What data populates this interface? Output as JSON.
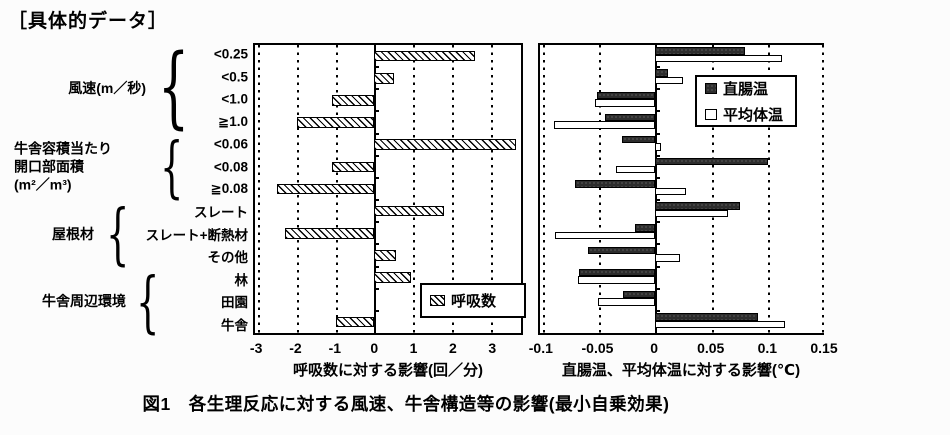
{
  "header": {
    "title": "［具体的データ］"
  },
  "caption": "図1　各生理反応に対する風速、牛舎構造等の影響(最小自乗効果)",
  "colors": {
    "bar_dark": "#2d2d2d",
    "bar_light": "#ffffff",
    "hatch_line": "#000000",
    "background": "#ffffff"
  },
  "categories": [
    "<0.25",
    "<0.5",
    "<1.0",
    "≧1.0",
    "<0.06",
    "<0.08",
    "≧0.08",
    "スレート",
    "スレート+断熱材",
    "その他",
    "林",
    "田園",
    "牛舎"
  ],
  "groups": [
    {
      "label_lines": [
        "風速(m／秒)"
      ],
      "start_row": 0,
      "end_row": 3
    },
    {
      "label_lines": [
        "牛舎容積当たり",
        "開口部面積",
        "(m²／m³)"
      ],
      "start_row": 4,
      "end_row": 6
    },
    {
      "label_lines": [
        "屋根材"
      ],
      "start_row": 7,
      "end_row": 9
    },
    {
      "label_lines": [
        "牛舎周辺環境"
      ],
      "start_row": 10,
      "end_row": 12
    }
  ],
  "chart_data": [
    {
      "type": "bar",
      "orientation": "horizontal",
      "title": "",
      "xlabel": "呼吸数に対する影響(回／分)",
      "ylabel": "",
      "categories": [
        "<0.25",
        "<0.5",
        "<1.0",
        "≧1.0",
        "<0.06",
        "<0.08",
        "≧0.08",
        "スレート",
        "スレート+断熱材",
        "その他",
        "林",
        "田園",
        "牛舎"
      ],
      "series": [
        {
          "name": "呼吸数",
          "style": "hatch",
          "values": [
            2.6,
            0.5,
            -1.1,
            -2.0,
            3.65,
            -1.1,
            -2.5,
            1.8,
            -2.3,
            0.55,
            0.95,
            0,
            -1.0
          ]
        }
      ],
      "xlim": [
        -3.08,
        3.78
      ],
      "xticks": [
        -3,
        -2,
        -1,
        0,
        1,
        2,
        3
      ],
      "tick_labels": [
        "-3",
        "-2",
        "-1",
        "0",
        "1",
        "2",
        "3"
      ],
      "grid": "dotted-vertical",
      "legend_position": "inside-bottom-right"
    },
    {
      "type": "bar",
      "orientation": "horizontal",
      "title": "",
      "xlabel": "直腸温、平均体温に対する影響(℃)",
      "ylabel": "",
      "categories": [
        "<0.25",
        "<0.5",
        "<1.0",
        "≧1.0",
        "<0.06",
        "<0.08",
        "≧0.08",
        "スレート",
        "スレート+断熱材",
        "その他",
        "林",
        "田園",
        "牛舎"
      ],
      "series": [
        {
          "name": "直腸温",
          "style": "dark",
          "values": [
            0.08,
            0.011,
            -0.052,
            -0.045,
            -0.03,
            0.1,
            -0.071,
            0.075,
            -0.018,
            -0.06,
            -0.068,
            -0.029,
            0.091
          ]
        },
        {
          "name": "平均体温",
          "style": "light",
          "values": [
            0.113,
            0.025,
            -0.054,
            -0.09,
            0.005,
            -0.035,
            0.027,
            0.065,
            -0.089,
            0.022,
            -0.069,
            -0.051,
            0.115
          ]
        }
      ],
      "xlim": [
        -0.1025,
        0.15
      ],
      "xticks": [
        -0.1,
        -0.05,
        0,
        0.05,
        0.1,
        0.15
      ],
      "tick_labels": [
        "-0.1",
        "-0.05",
        "0",
        "0.05",
        "0.1",
        "0.15"
      ],
      "grid": "dotted-vertical",
      "legend_position": "inside-top-right"
    }
  ]
}
